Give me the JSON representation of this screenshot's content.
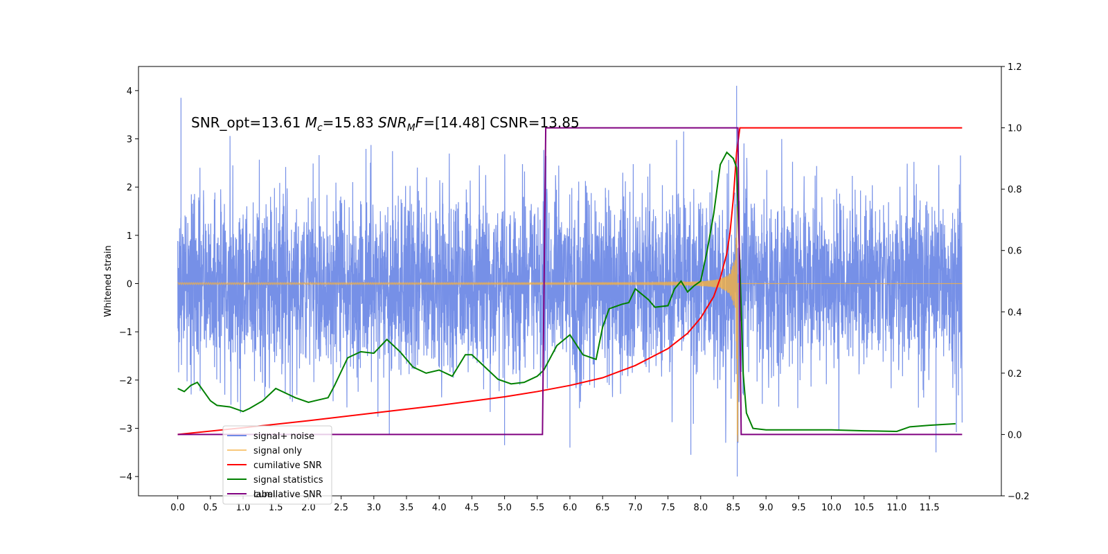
{
  "chart_data": {
    "type": "line",
    "title": "",
    "annotation": {
      "prefix": "SNR_opt=13.61 ",
      "mc_symbol": "M",
      "mc_sub": "c",
      "mc_value": "=15.83  ",
      "snr_symbol": "SNR",
      "snr_sub": "M",
      "snr_f": "F",
      "snr_value": "=[14.48] CSNR=13.85"
    },
    "xlabel": "",
    "ylabel_left": "Whitened strain",
    "ylabel_right": "",
    "xlim": [
      -0.6,
      12.6
    ],
    "ylim_left": [
      -4.4,
      4.5
    ],
    "ylim_right": [
      -0.2,
      1.2
    ],
    "x_ticks": [
      0.0,
      0.5,
      1.0,
      1.5,
      2.0,
      2.5,
      3.0,
      3.5,
      4.0,
      4.5,
      5.0,
      5.5,
      6.0,
      6.5,
      7.0,
      7.5,
      8.0,
      8.5,
      9.0,
      9.5,
      10.0,
      10.5,
      11.0,
      11.5
    ],
    "x_tick_labels": [
      "0.0",
      "0.5",
      "1.0",
      "1.5",
      "2.0",
      "2.5",
      "3.0",
      "3.5",
      "4.0",
      "4.5",
      "5.0",
      "5.5",
      "6.0",
      "6.5",
      "7.0",
      "7.5",
      "8.0",
      "8.5",
      "9.0",
      "9.5",
      "10.0",
      "10.5",
      "11.0",
      "11.5"
    ],
    "y_ticks_left": [
      -4,
      -3,
      -2,
      -1,
      0,
      1,
      2,
      3,
      4
    ],
    "y_tick_labels_left": [
      "−4",
      "−3",
      "−2",
      "−1",
      "0",
      "1",
      "2",
      "3",
      "4"
    ],
    "y_ticks_right": [
      -0.2,
      0.0,
      0.2,
      0.4,
      0.6,
      0.8,
      1.0,
      1.2
    ],
    "y_tick_labels_right": [
      "−0.2",
      "0.0",
      "0.2",
      "0.4",
      "0.6",
      "0.8",
      "1.0",
      "1.2"
    ],
    "legend_placement": "lower-left",
    "series": [
      {
        "name": "signal+ noise",
        "axis": "left",
        "color": "#6f8ae6",
        "style": "noise",
        "x_range": [
          0.0,
          12.0
        ],
        "std": 0.95,
        "spikes": [
          [
            0.05,
            3.85
          ],
          [
            8.55,
            4.1
          ],
          [
            8.56,
            -4.0
          ],
          [
            11.6,
            -3.5
          ],
          [
            7.85,
            -3.55
          ],
          [
            5.0,
            -3.35
          ],
          [
            6.0,
            -3.4
          ]
        ]
      },
      {
        "name": "signal only",
        "axis": "left",
        "color": "#f5b041",
        "style": "chirp",
        "x_range": [
          0.0,
          12.0
        ],
        "merger_time": 8.57,
        "amplitude_at_peak": 3.3
      },
      {
        "name": "cumilative SNR",
        "axis": "right",
        "color": "#ff0000",
        "x": [
          0.0,
          1.0,
          2.0,
          3.0,
          4.0,
          5.0,
          5.5,
          6.0,
          6.5,
          7.0,
          7.5,
          7.8,
          8.0,
          8.2,
          8.3,
          8.4,
          8.45,
          8.5,
          8.55,
          8.6,
          12.0
        ],
        "y": [
          0.0,
          0.022,
          0.045,
          0.07,
          0.095,
          0.123,
          0.14,
          0.16,
          0.185,
          0.225,
          0.28,
          0.33,
          0.38,
          0.45,
          0.51,
          0.59,
          0.66,
          0.77,
          0.92,
          1.0,
          1.0
        ]
      },
      {
        "name": "signal statistics",
        "axis": "right",
        "color": "#008000",
        "x": [
          0.0,
          0.1,
          0.2,
          0.3,
          0.5,
          0.6,
          0.8,
          1.0,
          1.1,
          1.3,
          1.5,
          1.7,
          1.8,
          2.0,
          2.1,
          2.3,
          2.4,
          2.6,
          2.8,
          3.0,
          3.2,
          3.4,
          3.6,
          3.8,
          4.0,
          4.2,
          4.4,
          4.5,
          4.7,
          4.9,
          5.1,
          5.3,
          5.5,
          5.6,
          5.8,
          6.0,
          6.2,
          6.4,
          6.5,
          6.6,
          6.8,
          6.9,
          7.0,
          7.2,
          7.3,
          7.5,
          7.6,
          7.7,
          7.8,
          7.9,
          8.0,
          8.1,
          8.2,
          8.3,
          8.4,
          8.5,
          8.55,
          8.6,
          8.65,
          8.7,
          8.8,
          9.0,
          9.5,
          10.0,
          10.5,
          11.0,
          11.2,
          11.5,
          11.9
        ],
        "y": [
          0.15,
          0.14,
          0.16,
          0.17,
          0.11,
          0.095,
          0.09,
          0.075,
          0.085,
          0.11,
          0.15,
          0.13,
          0.12,
          0.105,
          0.11,
          0.12,
          0.16,
          0.25,
          0.27,
          0.265,
          0.31,
          0.27,
          0.22,
          0.2,
          0.21,
          0.19,
          0.26,
          0.26,
          0.22,
          0.18,
          0.165,
          0.17,
          0.19,
          0.21,
          0.29,
          0.325,
          0.26,
          0.245,
          0.35,
          0.41,
          0.425,
          0.43,
          0.475,
          0.44,
          0.415,
          0.42,
          0.475,
          0.5,
          0.465,
          0.485,
          0.5,
          0.6,
          0.72,
          0.88,
          0.92,
          0.9,
          0.87,
          0.55,
          0.2,
          0.07,
          0.02,
          0.015,
          0.015,
          0.015,
          0.012,
          0.01,
          0.025,
          0.03,
          0.035
        ]
      },
      {
        "name": "label",
        "axis": "right",
        "color": "#800080",
        "x": [
          0.0,
          5.58,
          5.63,
          8.57,
          8.62,
          12.0
        ],
        "y": [
          0.0,
          0.0,
          1.0,
          1.0,
          0.0,
          0.0
        ]
      }
    ],
    "legend_shadow_text": [
      "cumilative SNR"
    ],
    "legend_shadow_color": "#c8c8c8"
  }
}
